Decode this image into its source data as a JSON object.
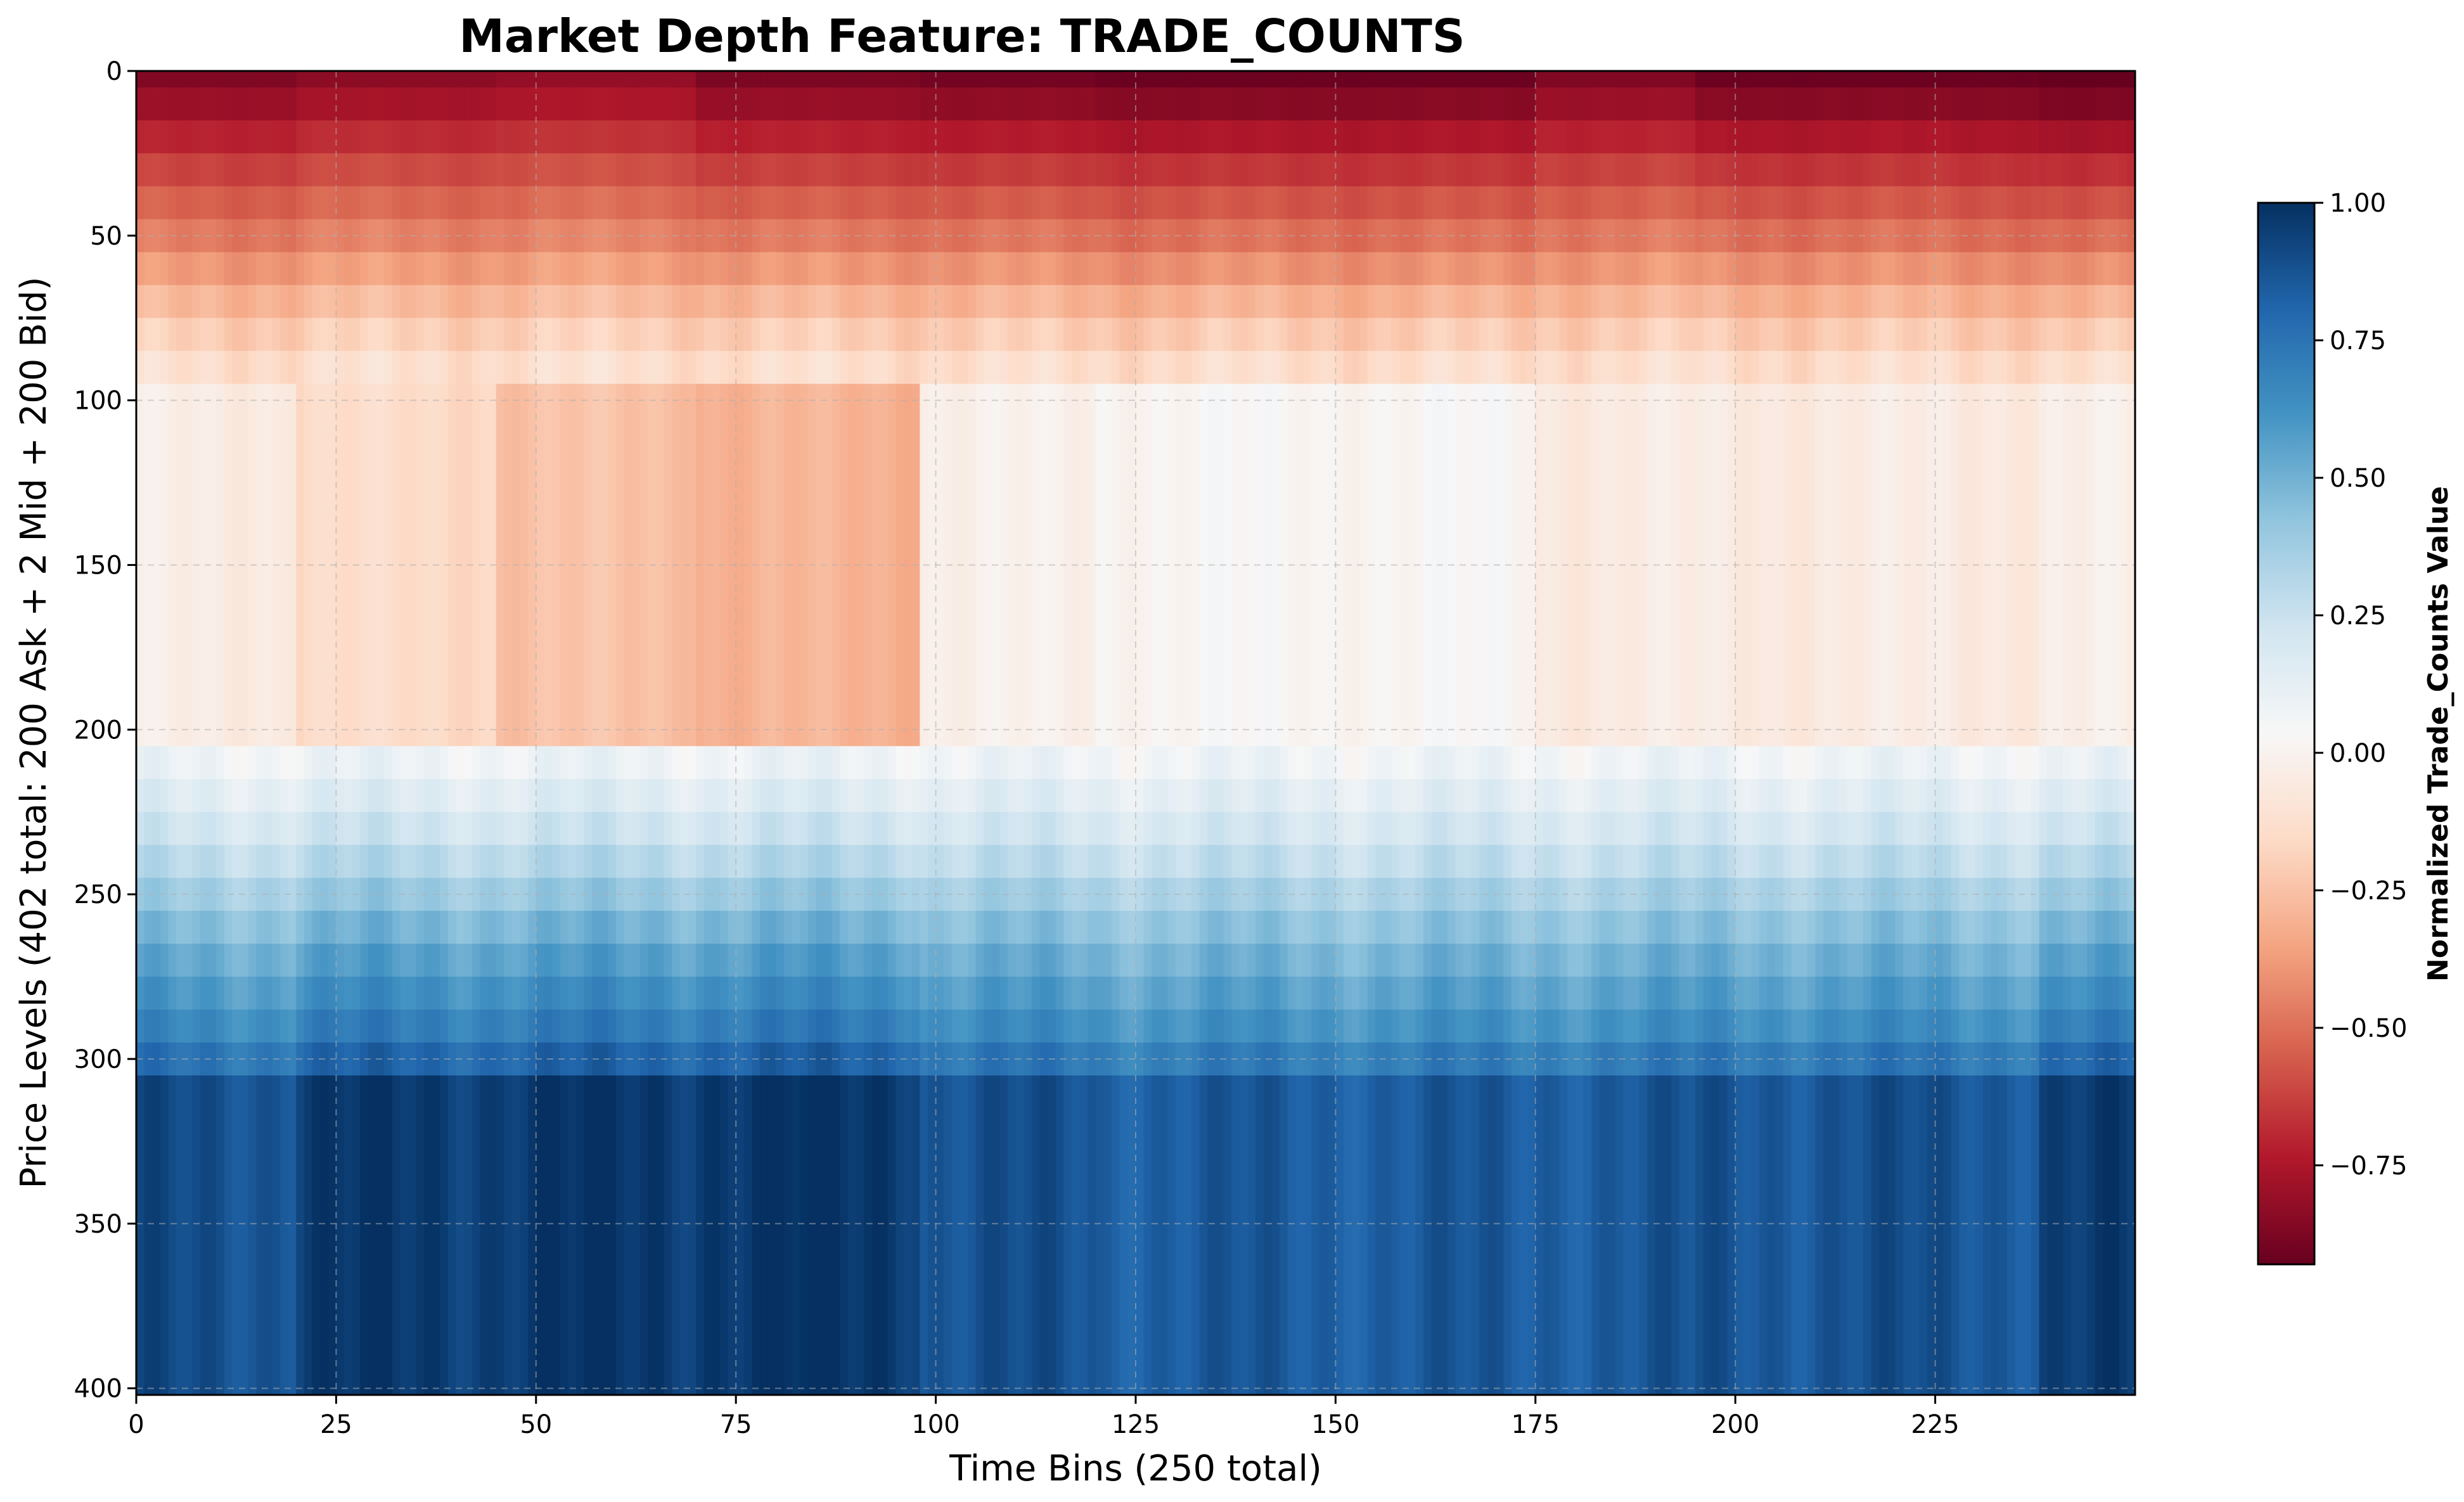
{
  "chart_data": {
    "type": "heatmap",
    "title": "Market Depth Feature: TRADE_COUNTS",
    "xlabel": "Time Bins (250 total)",
    "ylabel": "Price Levels (402 total: 200 Ask + 2 Mid + 200 Bid)",
    "xlim": [
      0,
      250
    ],
    "ylim": [
      402,
      0
    ],
    "xticks": [
      0,
      25,
      50,
      75,
      100,
      125,
      150,
      175,
      200,
      225
    ],
    "yticks": [
      0,
      50,
      100,
      150,
      200,
      250,
      300,
      350,
      400
    ],
    "grid": true,
    "colormap": "RdBu",
    "colorbar": {
      "label": "Normalized Trade_Counts Value",
      "range": [
        -0.93,
        1.0
      ],
      "ticks": [
        -0.75,
        -0.5,
        -0.25,
        0.0,
        0.25,
        0.5,
        0.75,
        1.0
      ],
      "tick_labels": [
        "−0.75",
        "−0.50",
        "−0.25",
        "0.00",
        "0.25",
        "0.50",
        "0.75",
        "1.00"
      ]
    },
    "band_levels": [
      0,
      5,
      15,
      25,
      35,
      45,
      55,
      65,
      75,
      85,
      95,
      205,
      215,
      225,
      235,
      245,
      255,
      265,
      275,
      285,
      295,
      305,
      402
    ],
    "profiles": {
      "ask_anchors": [
        [
          0,
          -0.92
        ],
        [
          15,
          -0.78
        ],
        [
          35,
          -0.6
        ],
        [
          55,
          -0.45
        ],
        [
          75,
          -0.25
        ],
        [
          95,
          -0.1
        ]
      ],
      "bid_anchors": [
        [
          205,
          0.05
        ],
        [
          235,
          0.25
        ],
        [
          265,
          0.5
        ],
        [
          295,
          0.7
        ],
        [
          310,
          0.88
        ],
        [
          402,
          0.95
        ]
      ]
    },
    "segments": [
      {
        "t": [
          0,
          20
        ],
        "mid": -0.04,
        "ask": -0.85,
        "bid": 0.9
      },
      {
        "t": [
          20,
          45
        ],
        "mid": -0.15,
        "ask": -0.82,
        "bid": 0.97
      },
      {
        "t": [
          45,
          70
        ],
        "mid": -0.25,
        "ask": -0.8,
        "bid": 0.98
      },
      {
        "t": [
          70,
          98
        ],
        "mid": -0.3,
        "ask": -0.86,
        "bid": 0.99
      },
      {
        "t": [
          98,
          120
        ],
        "mid": -0.02,
        "ask": -0.88,
        "bid": 0.88
      },
      {
        "t": [
          120,
          175
        ],
        "mid": 0.02,
        "ask": -0.9,
        "bid": 0.85
      },
      {
        "t": [
          175,
          195
        ],
        "mid": -0.05,
        "ask": -0.85,
        "bid": 0.86
      },
      {
        "t": [
          195,
          238
        ],
        "mid": -0.05,
        "ask": -0.9,
        "bid": 0.88
      },
      {
        "t": [
          238,
          250
        ],
        "mid": -0.03,
        "ask": -0.93,
        "bid": 0.95
      }
    ]
  },
  "colors": {
    "rdbu_stops": [
      "#67001f",
      "#b2182b",
      "#d6604d",
      "#f4a582",
      "#fddbc7",
      "#f7f7f7",
      "#d1e5f0",
      "#92c5de",
      "#4393c3",
      "#2166ac",
      "#053061"
    ],
    "grid": "#b0b0b0"
  }
}
